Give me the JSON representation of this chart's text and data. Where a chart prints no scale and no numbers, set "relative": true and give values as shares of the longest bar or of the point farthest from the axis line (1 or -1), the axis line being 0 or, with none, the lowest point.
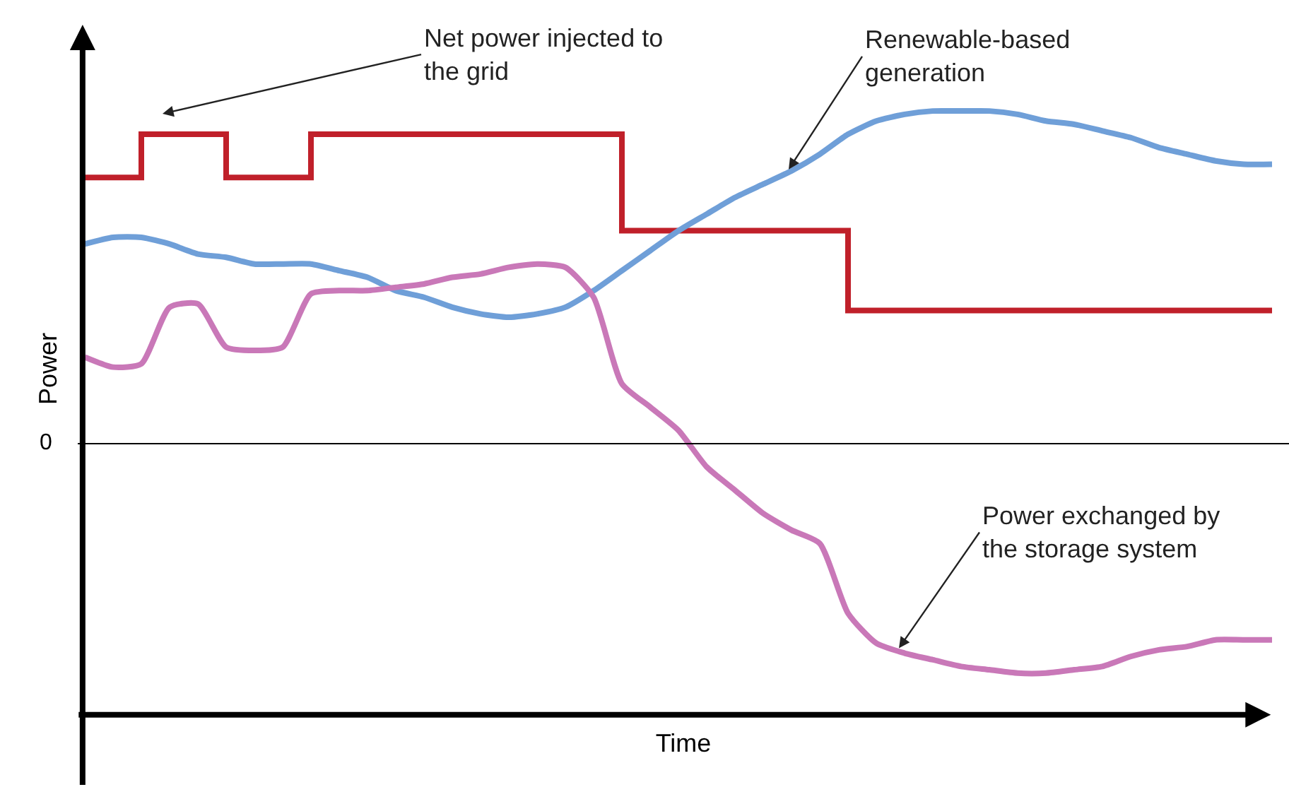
{
  "chart_data": {
    "type": "line",
    "relative": true,
    "xlabel": "Time",
    "ylabel": "Power",
    "marker": "none",
    "line_style": "solid",
    "categories": [
      null,
      null,
      null,
      null,
      null,
      null,
      null,
      null,
      null,
      null,
      null,
      null,
      null,
      null,
      null,
      null,
      null,
      null,
      null,
      null,
      null,
      null,
      null,
      null,
      null,
      null,
      null,
      null,
      null,
      null,
      null,
      null,
      null,
      null,
      null,
      null,
      null,
      null,
      null,
      null,
      null,
      null,
      null
    ],
    "series": [
      {
        "type": "step",
        "color": "#c0202a",
        "values": [
          0.8,
          0.8,
          0.93,
          0.93,
          0.93,
          0.8,
          0.8,
          0.8,
          0.93,
          0.93,
          0.93,
          0.93,
          0.93,
          0.93,
          0.93,
          0.93,
          0.93,
          0.93,
          0.93,
          0.64,
          0.64,
          0.64,
          0.64,
          0.64,
          0.64,
          0.64,
          0.64,
          0.4,
          0.4,
          0.4,
          0.4,
          0.4,
          0.4,
          0.4,
          0.4,
          0.4,
          0.4,
          0.4,
          0.4,
          0.4,
          0.4,
          0.4,
          0.4
        ]
      },
      {
        "color": "#6f9fd8",
        "values": [
          0.6,
          0.62,
          0.62,
          0.6,
          0.57,
          0.56,
          0.54,
          0.54,
          0.54,
          0.52,
          0.5,
          0.46,
          0.44,
          0.41,
          0.39,
          0.38,
          0.39,
          0.41,
          0.46,
          0.52,
          0.58,
          0.64,
          0.69,
          0.74,
          0.78,
          0.82,
          0.87,
          0.93,
          0.97,
          0.99,
          1.0,
          1.0,
          1.0,
          0.99,
          0.97,
          0.96,
          0.94,
          0.92,
          0.89,
          0.87,
          0.85,
          0.84,
          0.84
        ]
      },
      {
        "color": "#c978b8",
        "values": [
          0.26,
          0.23,
          0.24,
          0.41,
          0.42,
          0.29,
          0.28,
          0.29,
          0.45,
          0.46,
          0.46,
          0.47,
          0.48,
          0.5,
          0.51,
          0.53,
          0.54,
          0.53,
          0.44,
          0.18,
          0.11,
          0.04,
          -0.07,
          -0.14,
          -0.21,
          -0.26,
          -0.3,
          -0.51,
          -0.6,
          -0.63,
          -0.65,
          -0.67,
          -0.68,
          -0.69,
          -0.69,
          -0.68,
          -0.67,
          -0.64,
          -0.62,
          -0.61,
          -0.59,
          -0.59,
          -0.59
        ]
      }
    ],
    "ref_lines": [
      {
        "axis": "y",
        "value": 0,
        "label": "0",
        "color": "#000000"
      }
    ],
    "annotations": [
      "Net power injected to\nthe grid",
      "Renewable-based\ngeneration",
      "Power exchanged by\nthe storage system"
    ]
  }
}
